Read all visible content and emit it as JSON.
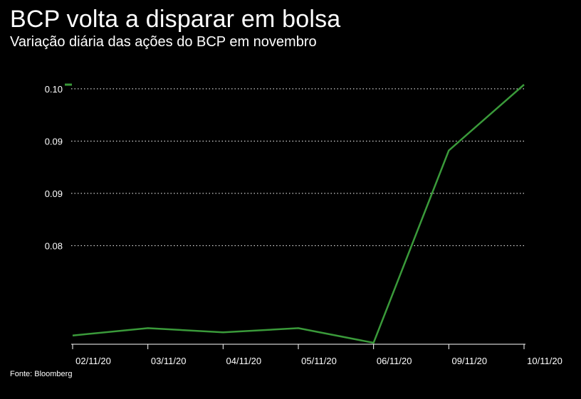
{
  "header": {
    "title": "BCP volta a disparar em bolsa",
    "subtitle": "Variação diária das ações do BCP em novembro"
  },
  "footer": {
    "source": "Fonte: Bloomberg"
  },
  "colors": {
    "background": "#000000",
    "line": "#3a9a3a",
    "grid": "#ffffff",
    "text": "#ffffff"
  },
  "chart_data": {
    "type": "line",
    "title": "BCP volta a disparar em bolsa",
    "subtitle": "Variação diária das ações do BCP em novembro",
    "categories": [
      "02/11/20",
      "03/11/20",
      "04/11/20",
      "05/11/20",
      "06/11/20",
      "09/11/20",
      "10/11/20"
    ],
    "series": [
      {
        "values": [
          0.0764,
          0.0771,
          0.0767,
          0.0771,
          0.0757,
          0.0941,
          0.1004
        ]
      }
    ],
    "y_ticks": [
      {
        "value": 0.1,
        "label": "0.10"
      },
      {
        "value": 0.095,
        "label": "0.09"
      },
      {
        "value": 0.09,
        "label": "0.09"
      },
      {
        "value": 0.085,
        "label": "0.08"
      }
    ],
    "ylim": [
      0.0757,
      0.1004
    ],
    "grid": "horizontal dotted",
    "legend": "top-left"
  }
}
